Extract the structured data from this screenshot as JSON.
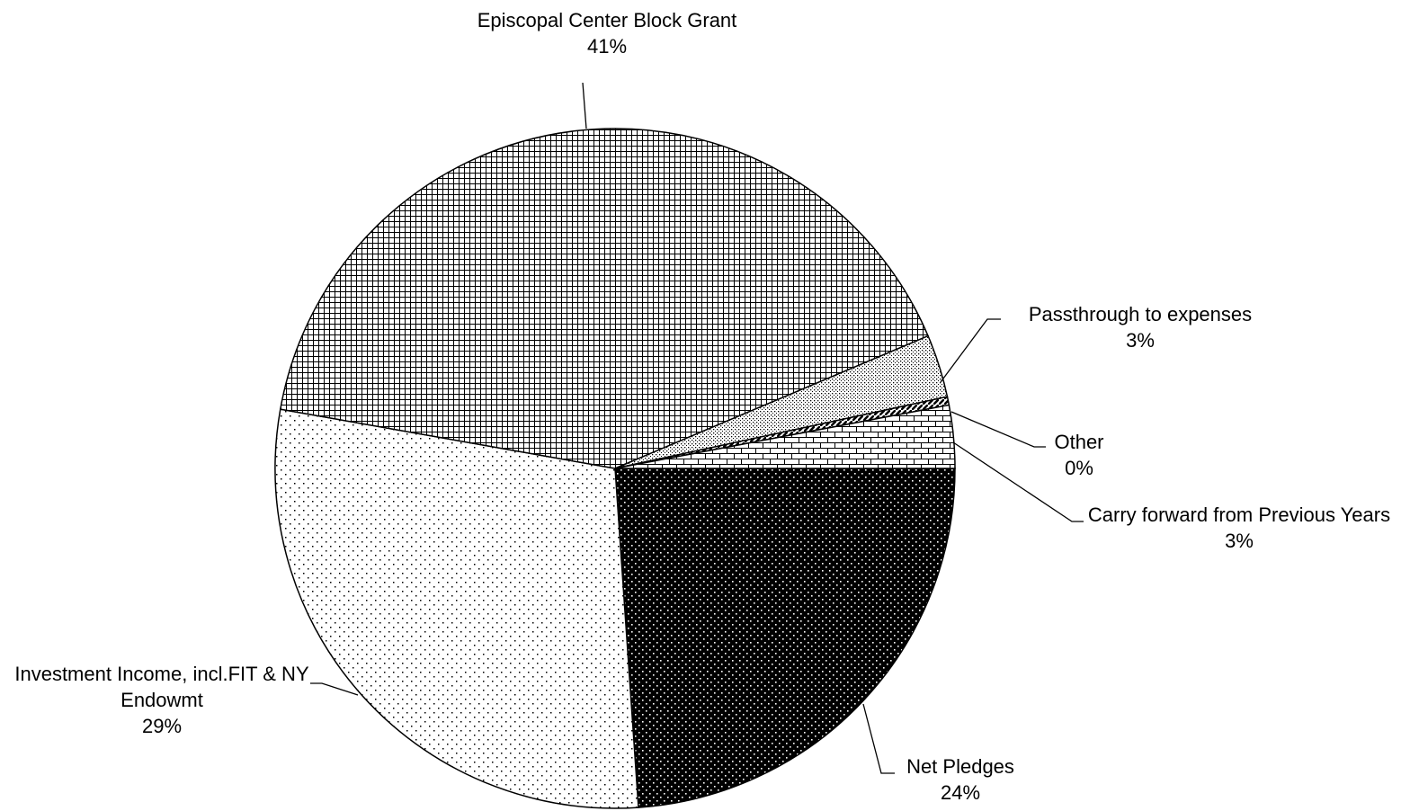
{
  "chart_data": {
    "type": "pie",
    "categories": [
      "Net Pledges",
      "Investment Income, incl.FIT & NY Endowmt",
      "Episcopal Center Block Grant",
      "Passthrough to expenses",
      "Other",
      "Carry forward from Previous Years"
    ],
    "values": [
      24,
      29,
      41,
      3,
      0.4,
      3
    ],
    "value_labels": [
      "24%",
      "29%",
      "41%",
      "3%",
      "0%",
      "3%"
    ]
  }
}
